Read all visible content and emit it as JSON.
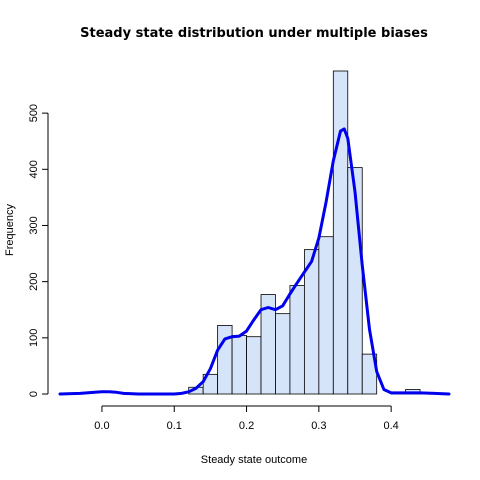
{
  "chart_data": {
    "type": "bar",
    "title": "Steady state distribution under multiple biases",
    "xlabel": "Steady state outcome",
    "ylabel": "Frequency",
    "xlim": [
      -0.058,
      0.48
    ],
    "ylim": [
      0,
      575
    ],
    "x_ticks": [
      0.0,
      0.1,
      0.2,
      0.3,
      0.4
    ],
    "x_tick_labels": [
      "0.0",
      "0.1",
      "0.2",
      "0.3",
      "0.4"
    ],
    "y_ticks": [
      0,
      100,
      200,
      300,
      400,
      500
    ],
    "y_tick_labels": [
      "0",
      "100",
      "200",
      "300",
      "400",
      "500"
    ],
    "bin_width": 0.02,
    "bins": [
      {
        "x0": 0.12,
        "x1": 0.14,
        "count": 12
      },
      {
        "x0": 0.14,
        "x1": 0.16,
        "count": 35
      },
      {
        "x0": 0.16,
        "x1": 0.18,
        "count": 122
      },
      {
        "x0": 0.18,
        "x1": 0.2,
        "count": 104
      },
      {
        "x0": 0.2,
        "x1": 0.22,
        "count": 102
      },
      {
        "x0": 0.22,
        "x1": 0.24,
        "count": 177
      },
      {
        "x0": 0.24,
        "x1": 0.26,
        "count": 143
      },
      {
        "x0": 0.26,
        "x1": 0.28,
        "count": 193
      },
      {
        "x0": 0.28,
        "x1": 0.3,
        "count": 257
      },
      {
        "x0": 0.3,
        "x1": 0.32,
        "count": 280
      },
      {
        "x0": 0.32,
        "x1": 0.34,
        "count": 575
      },
      {
        "x0": 0.34,
        "x1": 0.36,
        "count": 403
      },
      {
        "x0": 0.36,
        "x1": 0.38,
        "count": 71
      },
      {
        "x0": 0.38,
        "x1": 0.4,
        "count": 0
      },
      {
        "x0": 0.4,
        "x1": 0.42,
        "count": 2
      },
      {
        "x0": 0.42,
        "x1": 0.44,
        "count": 8
      },
      {
        "x0": 0.44,
        "x1": 0.46,
        "count": 2
      }
    ],
    "density_curve": {
      "x": [
        -0.058,
        -0.03,
        -0.01,
        0.0,
        0.01,
        0.02,
        0.03,
        0.05,
        0.08,
        0.1,
        0.11,
        0.12,
        0.13,
        0.14,
        0.15,
        0.16,
        0.17,
        0.18,
        0.19,
        0.2,
        0.21,
        0.22,
        0.23,
        0.24,
        0.25,
        0.26,
        0.27,
        0.28,
        0.29,
        0.3,
        0.31,
        0.32,
        0.33,
        0.335,
        0.34,
        0.35,
        0.36,
        0.37,
        0.38,
        0.39,
        0.4,
        0.42,
        0.44,
        0.46,
        0.48
      ],
      "y": [
        0,
        1,
        3,
        4,
        4,
        3,
        1,
        0,
        0,
        0,
        1,
        4,
        10,
        22,
        45,
        78,
        98,
        102,
        103,
        112,
        132,
        150,
        154,
        150,
        157,
        178,
        198,
        217,
        236,
        278,
        342,
        415,
        468,
        472,
        455,
        360,
        230,
        115,
        40,
        8,
        2,
        2,
        2,
        1,
        0
      ]
    },
    "colors": {
      "bar_fill": "#d6e4fa",
      "bar_stroke": "#000000",
      "density_line": "#0000ee"
    },
    "grid": false
  }
}
